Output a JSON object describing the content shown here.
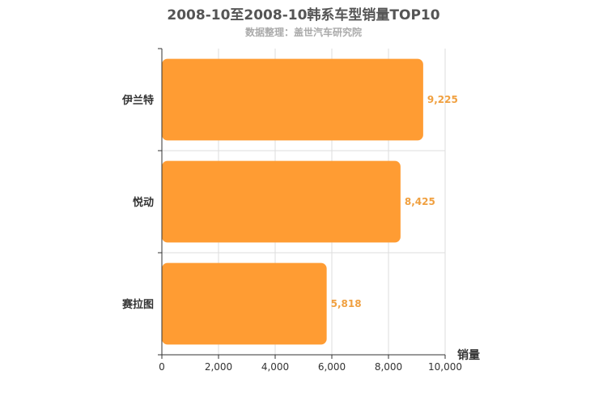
{
  "chart_data": {
    "type": "bar",
    "orientation": "horizontal",
    "title": "2008-10至2008-10韩系车型销量TOP10",
    "subtitle": "数据整理：盖世汽车研究院",
    "categories": [
      "伊兰特",
      "悦动",
      "赛拉图"
    ],
    "values": [
      9225,
      8425,
      5818
    ],
    "value_labels": [
      "9,225",
      "8,425",
      "5,818"
    ],
    "xlabel": "销量",
    "ylabel": "",
    "xlim": [
      0,
      10000
    ],
    "x_ticks": [
      0,
      2000,
      4000,
      6000,
      8000,
      10000
    ],
    "x_tick_labels": [
      "0",
      "2,000",
      "4,000",
      "6,000",
      "8,000",
      "10,000"
    ],
    "grid": true,
    "bar_color": "#ff9c33",
    "label_color": "#f0a040"
  }
}
